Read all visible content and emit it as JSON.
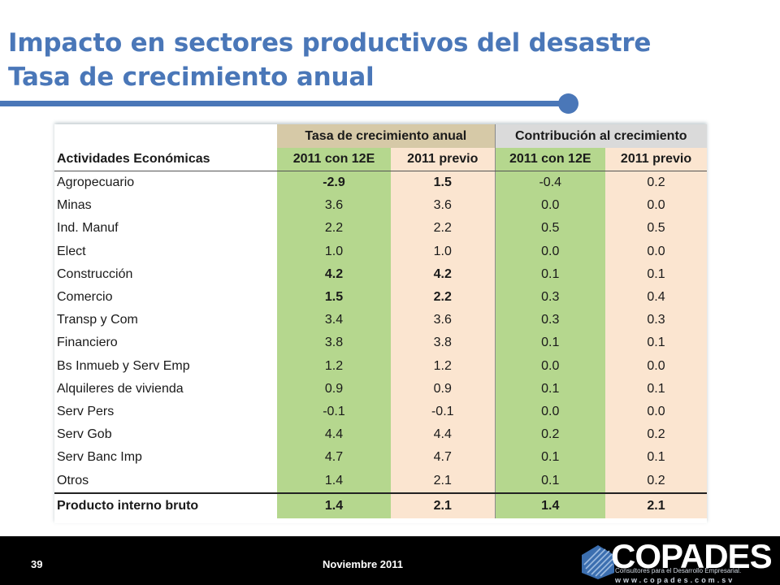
{
  "slide": {
    "title_line1": "Impacto en sectores productivos del desastre",
    "title_line2": "Tasa de crecimiento anual"
  },
  "table": {
    "group_headers": [
      "Tasa de crecimiento anual",
      "Contribución al crecimiento"
    ],
    "row_header": "Actividades Económicas",
    "sub_headers": [
      "2011 con 12E",
      "2011 previo",
      "2011 con 12E",
      "2011 previo"
    ],
    "rows": [
      {
        "label": "Agropecuario",
        "values": [
          "-2.9",
          "1.5",
          "-0.4",
          "0.2"
        ]
      },
      {
        "label": "Minas",
        "values": [
          "3.6",
          "3.6",
          "0.0",
          "0.0"
        ]
      },
      {
        "label": "Ind. Manuf",
        "values": [
          "2.2",
          "2.2",
          "0.5",
          "0.5"
        ]
      },
      {
        "label": "Elect",
        "values": [
          "1.0",
          "1.0",
          "0.0",
          "0.0"
        ]
      },
      {
        "label": "Construcción",
        "values": [
          "4.2",
          "4.2",
          "0.1",
          "0.1"
        ]
      },
      {
        "label": "Comercio",
        "values": [
          "1.5",
          "2.2",
          "0.3",
          "0.4"
        ]
      },
      {
        "label": "Transp y Com",
        "values": [
          "3.4",
          "3.6",
          "0.3",
          "0.3"
        ]
      },
      {
        "label": "Financiero",
        "values": [
          "3.8",
          "3.8",
          "0.1",
          "0.1"
        ]
      },
      {
        "label": "Bs Inmueb y Serv Emp",
        "values": [
          "1.2",
          "1.2",
          "0.0",
          "0.0"
        ]
      },
      {
        "label": "Alquileres de vivienda",
        "values": [
          "0.9",
          "0.9",
          "0.1",
          "0.1"
        ]
      },
      {
        "label": "Serv Pers",
        "values": [
          "-0.1",
          "-0.1",
          "0.0",
          "0.0"
        ]
      },
      {
        "label": "Serv Gob",
        "values": [
          "4.4",
          "4.4",
          "0.2",
          "0.2"
        ]
      },
      {
        "label": "Serv Banc Imp",
        "values": [
          "4.7",
          "4.7",
          "0.1",
          "0.1"
        ]
      },
      {
        "label": "Otros",
        "values": [
          "1.4",
          "2.1",
          "0.1",
          "0.2"
        ]
      }
    ],
    "total": {
      "label": "Producto interno bruto",
      "values": [
        "1.4",
        "2.1",
        "1.4",
        "2.1"
      ]
    }
  },
  "footer": {
    "page_number": "39",
    "date": "Noviembre 2011",
    "logo_text": "COPADES",
    "logo_tagline": "Consultores para el Desarrollo Empresarial.",
    "logo_website": "www.copades.com.sv"
  },
  "colors": {
    "title_blue": "#4a77b8",
    "group1_bg": "#d6c9a7",
    "group2_bg": "#dadada",
    "green_col": "#b5d78e",
    "peach_col": "#fbe5d0",
    "footer_bg": "#000000"
  }
}
